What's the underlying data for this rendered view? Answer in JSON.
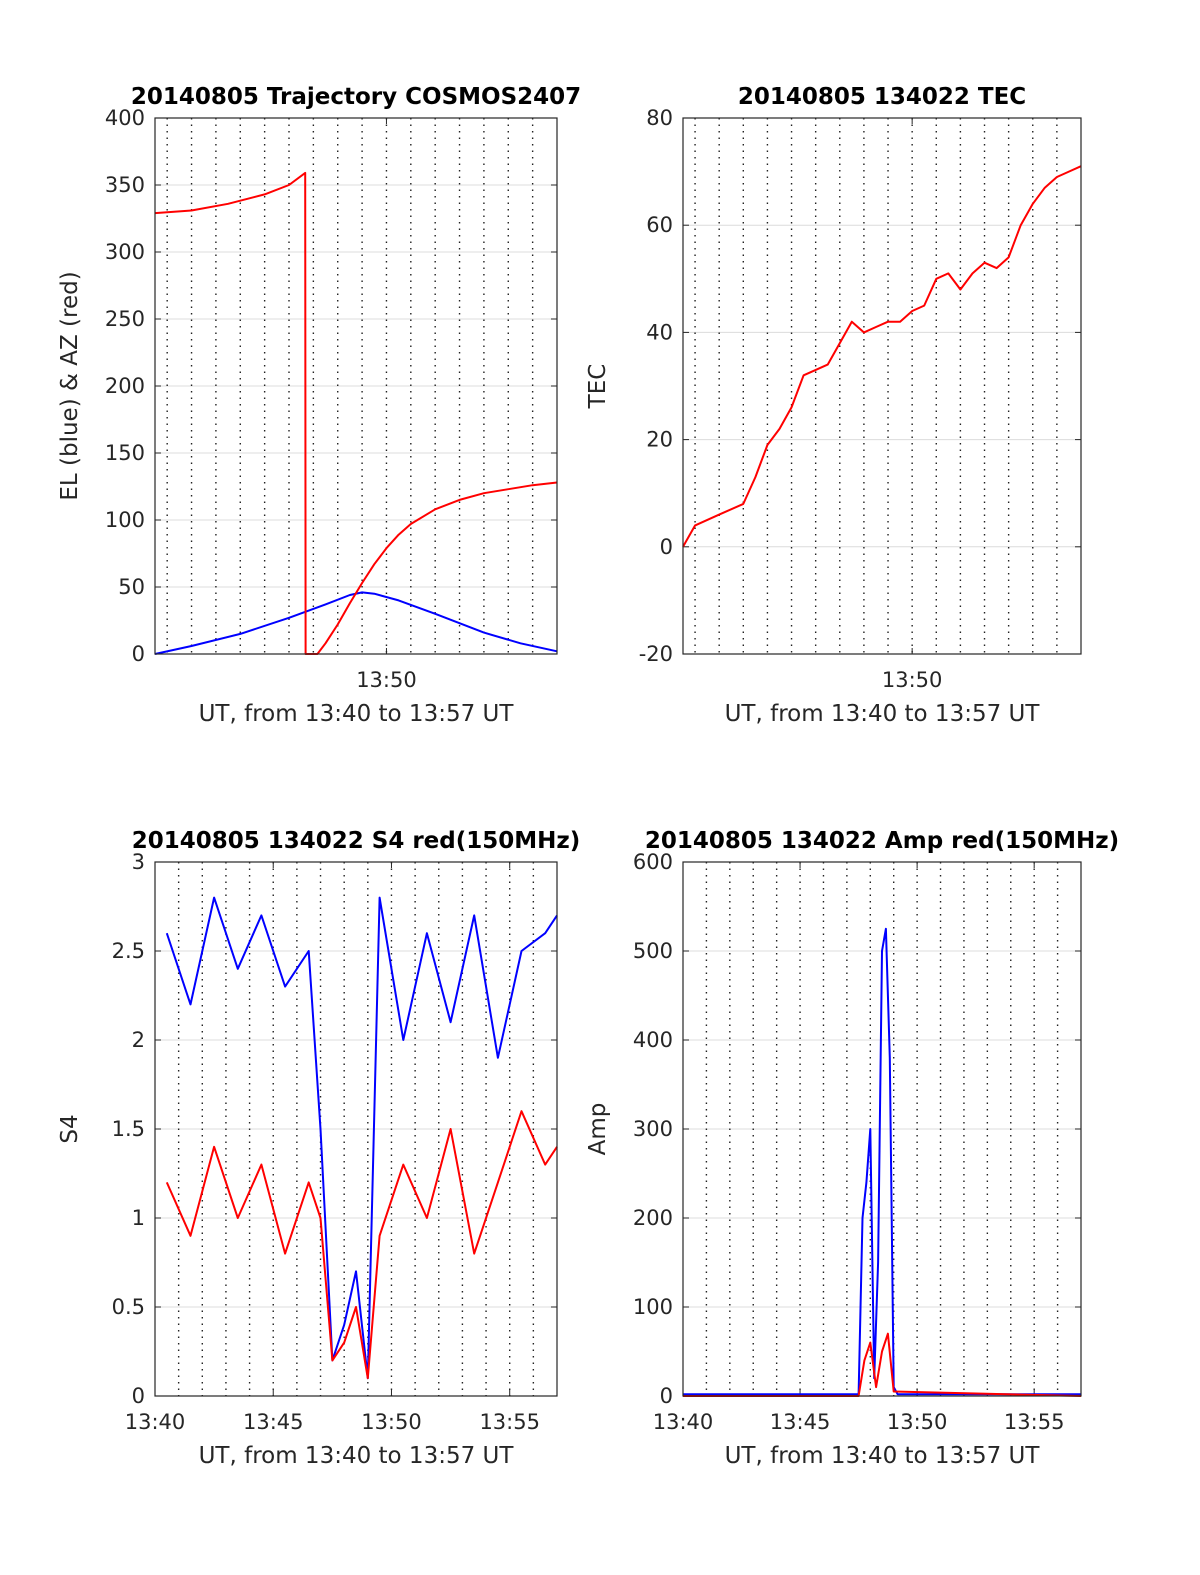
{
  "chart_data": [
    {
      "id": "p1",
      "type": "line",
      "title": "20140805 Trajectory COSMOS2407",
      "xlabel": "UT, from 13:40 to 13:57 UT",
      "ylabel": "EL (blue) & AZ (red)",
      "xlim": [
        "13:40:30",
        "13:57:00"
      ],
      "ylim": [
        0,
        400
      ],
      "yticks": [
        "0",
        "50",
        "100",
        "150",
        "200",
        "250",
        "300",
        "350",
        "400"
      ],
      "xticks": [
        {
          "t": "13:50",
          "label": "13:50"
        }
      ],
      "grid": "dotted vertical every minute, solid horizontal",
      "series": [
        {
          "color": "#0000ff",
          "x": [
            "13:40:30",
            "13:42:00",
            "13:44:00",
            "13:46:00",
            "13:47:30",
            "13:48:30",
            "13:49:00",
            "13:49:30",
            "13:50:30",
            "13:52:00",
            "13:54:00",
            "13:55:30",
            "13:57:00"
          ],
          "y": [
            0,
            6,
            15,
            27,
            37,
            44,
            46,
            45,
            40,
            30,
            16,
            8,
            2
          ]
        },
        {
          "color": "#ff0000",
          "x": [
            "13:40:30",
            "13:42:00",
            "13:43:30",
            "13:45:00",
            "13:46:00",
            "13:46:40",
            "13:46:41",
            "13:47:10",
            "13:47:30",
            "13:48:00",
            "13:48:30",
            "13:49:00",
            "13:49:30",
            "13:50:00",
            "13:50:30",
            "13:51:00",
            "13:52:00",
            "13:53:00",
            "13:54:00",
            "13:55:00",
            "13:56:00",
            "13:57:00"
          ],
          "y": [
            329,
            331,
            336,
            343,
            350,
            359,
            0,
            0,
            8,
            22,
            38,
            53,
            67,
            79,
            89,
            97,
            108,
            115,
            120,
            123,
            126,
            128
          ]
        }
      ]
    },
    {
      "id": "p2",
      "type": "line",
      "title": "20140805 134022 TEC",
      "xlabel": "UT, from 13:40 to 13:57 UT",
      "ylabel": "TEC",
      "xlim": [
        "13:40:30",
        "13:57:00"
      ],
      "ylim": [
        -20,
        80
      ],
      "yticks": [
        "-20",
        "0",
        "20",
        "40",
        "60",
        "80"
      ],
      "xticks": [
        {
          "t": "13:50",
          "label": "13:50"
        }
      ],
      "series": [
        {
          "color": "#ff0000",
          "x": [
            "13:40:30",
            "13:41:00",
            "13:42:00",
            "13:43:00",
            "13:43:30",
            "13:44:00",
            "13:44:30",
            "13:45:00",
            "13:45:30",
            "13:46:00",
            "13:46:30",
            "13:47:00",
            "13:47:30",
            "13:48:00",
            "13:48:30",
            "13:49:00",
            "13:49:30",
            "13:50:00",
            "13:50:30",
            "13:51:00",
            "13:51:30",
            "13:52:00",
            "13:52:30",
            "13:53:00",
            "13:53:30",
            "13:54:00",
            "13:54:30",
            "13:55:00",
            "13:55:30",
            "13:56:00",
            "13:56:30",
            "13:57:00"
          ],
          "y": [
            0,
            4,
            6,
            8,
            13,
            19,
            22,
            26,
            32,
            33,
            34,
            38,
            42,
            40,
            41,
            42,
            42,
            44,
            45,
            50,
            51,
            48,
            51,
            53,
            52,
            54,
            60,
            64,
            67,
            69,
            70,
            71
          ]
        }
      ]
    },
    {
      "id": "p3",
      "type": "line",
      "title": "20140805 134022 S4 red(150MHz)",
      "xlabel": "UT, from 13:40 to 13:57 UT",
      "ylabel": "S4",
      "xlim": [
        "13:40:00",
        "13:57:00"
      ],
      "ylim": [
        0,
        3
      ],
      "yticks": [
        "0",
        "0.5",
        "1",
        "1.5",
        "2",
        "2.5",
        "3"
      ],
      "xticks": [
        {
          "t": "13:40",
          "label": "13:40"
        },
        {
          "t": "13:45",
          "label": "13:45"
        },
        {
          "t": "13:50",
          "label": "13:50"
        },
        {
          "t": "13:55",
          "label": "13:55"
        }
      ],
      "series": [
        {
          "color": "#0000ff",
          "x": [
            "13:40:30",
            "13:41:30",
            "13:42:30",
            "13:43:30",
            "13:44:30",
            "13:45:30",
            "13:46:30",
            "13:47:00",
            "13:47:30",
            "13:48:00",
            "13:48:30",
            "13:49:00",
            "13:49:30",
            "13:50:30",
            "13:51:30",
            "13:52:30",
            "13:53:30",
            "13:54:30",
            "13:55:30",
            "13:56:30",
            "13:57:00"
          ],
          "y": [
            2.6,
            2.2,
            2.8,
            2.4,
            2.7,
            2.3,
            2.5,
            1.5,
            0.2,
            0.4,
            0.7,
            0.1,
            2.8,
            2.0,
            2.6,
            2.1,
            2.7,
            1.9,
            2.5,
            2.6,
            2.7
          ]
        },
        {
          "color": "#ff0000",
          "x": [
            "13:40:30",
            "13:41:30",
            "13:42:30",
            "13:43:30",
            "13:44:30",
            "13:45:30",
            "13:46:30",
            "13:47:00",
            "13:47:30",
            "13:48:00",
            "13:48:30",
            "13:49:00",
            "13:49:30",
            "13:50:30",
            "13:51:30",
            "13:52:30",
            "13:53:30",
            "13:54:30",
            "13:55:30",
            "13:56:30",
            "13:57:00"
          ],
          "y": [
            1.2,
            0.9,
            1.4,
            1.0,
            1.3,
            0.8,
            1.2,
            1.0,
            0.2,
            0.3,
            0.5,
            0.1,
            0.9,
            1.3,
            1.0,
            1.5,
            0.8,
            1.2,
            1.6,
            1.3,
            1.4
          ]
        }
      ]
    },
    {
      "id": "p4",
      "type": "line",
      "title": "20140805 134022 Amp red(150MHz)",
      "xlabel": "UT, from 13:40 to 13:57 UT",
      "ylabel": "Amp",
      "xlim": [
        "13:40:00",
        "13:57:00"
      ],
      "ylim": [
        0,
        600
      ],
      "yticks": [
        "0",
        "100",
        "200",
        "300",
        "400",
        "500",
        "600"
      ],
      "xticks": [
        {
          "t": "13:40",
          "label": "13:40"
        },
        {
          "t": "13:45",
          "label": "13:45"
        },
        {
          "t": "13:50",
          "label": "13:50"
        },
        {
          "t": "13:55",
          "label": "13:55"
        }
      ],
      "series": [
        {
          "color": "#0000ff",
          "x": [
            "13:40:00",
            "13:47:30",
            "13:47:40",
            "13:47:50",
            "13:48:00",
            "13:48:10",
            "13:48:20",
            "13:48:30",
            "13:48:40",
            "13:48:50",
            "13:49:00",
            "13:49:10",
            "13:57:00"
          ],
          "y": [
            2,
            2,
            200,
            240,
            300,
            20,
            150,
            500,
            525,
            380,
            10,
            2,
            2
          ]
        },
        {
          "color": "#ff0000",
          "x": [
            "13:40:00",
            "13:47:30",
            "13:47:45",
            "13:48:00",
            "13:48:15",
            "13:48:30",
            "13:48:45",
            "13:49:00",
            "13:57:00"
          ],
          "y": [
            0,
            0,
            40,
            60,
            10,
            50,
            70,
            5,
            0
          ]
        }
      ]
    }
  ]
}
